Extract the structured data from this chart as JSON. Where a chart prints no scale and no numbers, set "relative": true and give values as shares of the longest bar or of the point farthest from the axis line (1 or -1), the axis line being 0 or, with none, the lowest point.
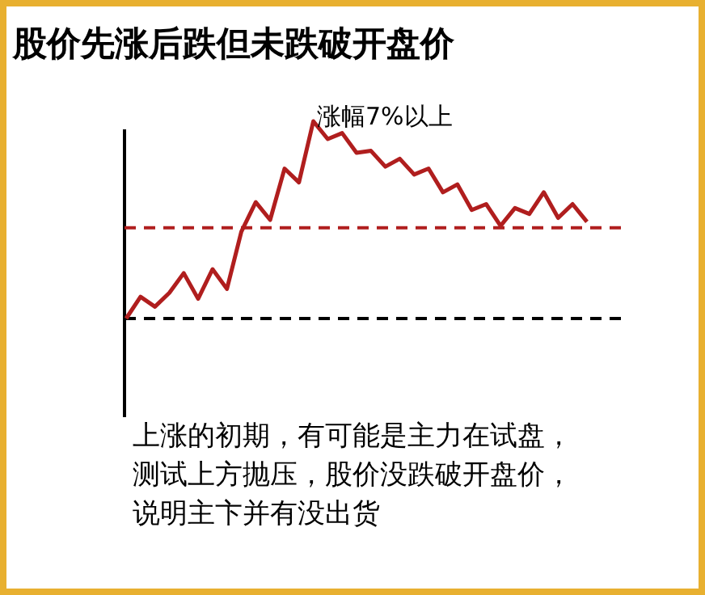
{
  "chart_data": {
    "type": "line",
    "title": "股价先涨后跌但未跌破开盘价",
    "relative": true,
    "categories": [
      null,
      null,
      null,
      null,
      null,
      null,
      null,
      null,
      null,
      null,
      null,
      null,
      null,
      null,
      null,
      null,
      null,
      null,
      null,
      null,
      null,
      null,
      null,
      null,
      null,
      null,
      null,
      null,
      null,
      null,
      null,
      null,
      null
    ],
    "series": [
      {
        "color": "#b01e1e",
        "values": [
          0,
          0.11,
          0.06,
          0.13,
          0.23,
          0.1,
          0.25,
          0.15,
          0.44,
          0.59,
          0.5,
          0.76,
          0.69,
          1,
          0.91,
          0.94,
          0.84,
          0.85,
          0.77,
          0.81,
          0.73,
          0.76,
          0.64,
          0.68,
          0.55,
          0.58,
          0.47,
          0.56,
          0.53,
          0.64,
          0.51,
          0.58,
          0.49
        ]
      }
    ],
    "ref_lines": [
      {
        "axis": "y",
        "value": 0,
        "color": "#000000",
        "line_style": "dashed"
      },
      {
        "axis": "y",
        "value": 0.46,
        "color": "#b01e1e",
        "line_style": "dashed"
      }
    ],
    "annotations": [
      "涨幅7%以上",
      "上涨的初期，有可能是主力在试盘，",
      "测试上方抛压，股价没跌破开盘价，",
      "说明主卞并有没出货"
    ],
    "line_style": "solid"
  }
}
